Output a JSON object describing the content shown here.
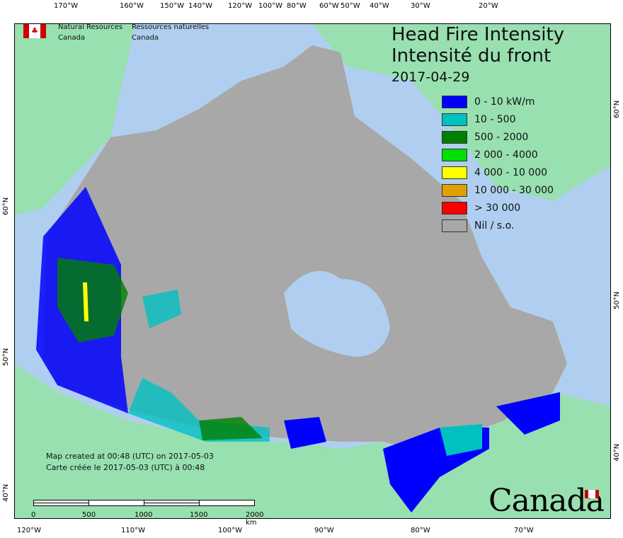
{
  "title": {
    "line1": "Head Fire Intensity",
    "line2": "Intensité du front",
    "date": "2017-04-29"
  },
  "agency": {
    "en_line1": "Natural Resources",
    "en_line2": "Canada",
    "fr_line1": "Ressources naturelles",
    "fr_line2": "Canada"
  },
  "legend": [
    {
      "label": "0 - 10 kW/m",
      "color": "#0000ff"
    },
    {
      "label": "10 - 500",
      "color": "#00c0c0"
    },
    {
      "label": "500 - 2000",
      "color": "#008000"
    },
    {
      "label": "2 000 - 4000",
      "color": "#00e000"
    },
    {
      "label": "4 000 - 10 000",
      "color": "#ffff00"
    },
    {
      "label": "10 000 - 30 000",
      "color": "#e0a000"
    },
    {
      "label": "> 30 000",
      "color": "#ff0000"
    },
    {
      "label": "Nil / s.o.",
      "color": "#a8a8a8"
    }
  ],
  "created": {
    "en": "Map created at 00:48 (UTC) on 2017-05-03",
    "fr": "Carte créée le 2017-05-03 (UTC) à 00:48"
  },
  "scale_bar": {
    "labels": [
      "0",
      "500",
      "1000",
      "1500",
      "2000  km"
    ]
  },
  "top_ticks": [
    "170°W",
    "160°W",
    "150°W",
    "140°W",
    "120°W",
    "100°W",
    "80°W",
    "60°W",
    "50°W",
    "40°W",
    "30°W",
    "20°W"
  ],
  "bottom_ticks": [
    "120°W",
    "110°W",
    "100°W",
    "90°W",
    "80°W",
    "70°W"
  ],
  "left_ticks": [
    "60°N",
    "50°N",
    "40°N"
  ],
  "right_ticks": [
    "60°N",
    "50°N",
    "40°N"
  ],
  "wordmark": "Canada",
  "colors": {
    "ocean": "#b0cff0",
    "foreign_land": "#98e0b0",
    "nil": "#a8a8a8"
  }
}
